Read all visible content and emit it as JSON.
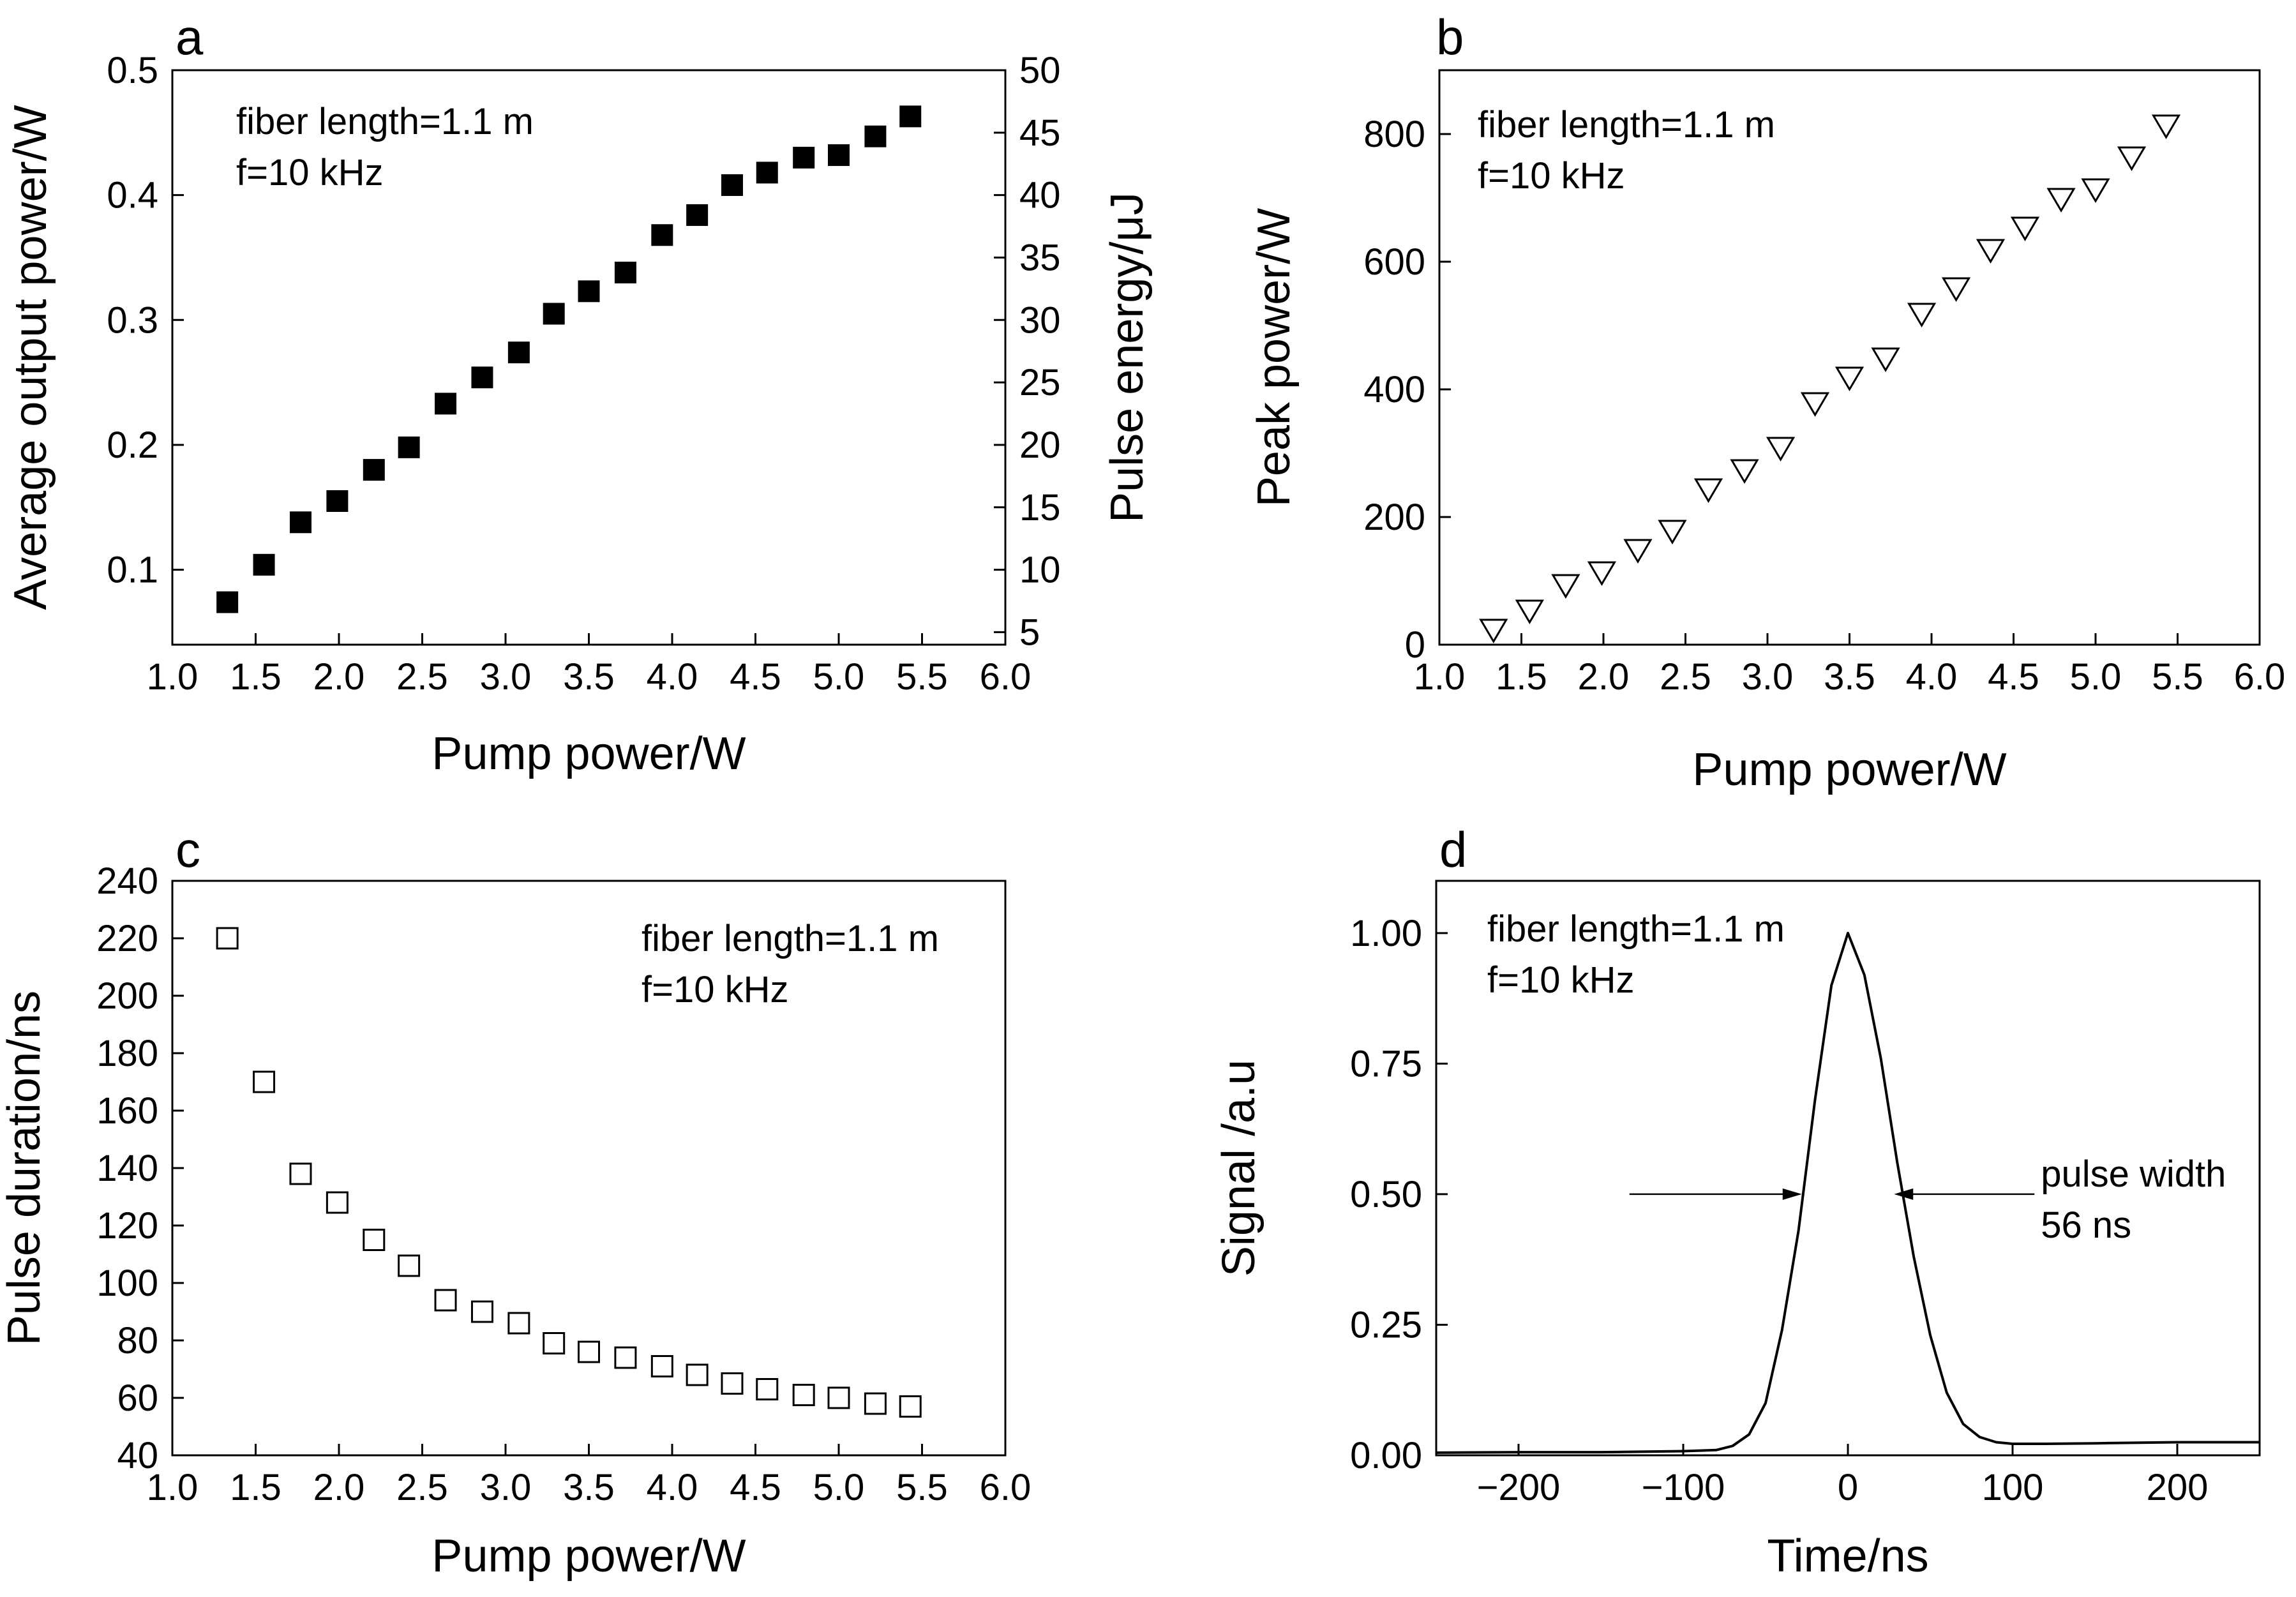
{
  "figure": {
    "panels_count": 4
  },
  "chart_data": [
    {
      "panel": "a",
      "type": "scatter",
      "xlabel": "Pump power/W",
      "ylabel": "Average output power/W",
      "y2label": "Pulse energy/μJ",
      "xlim": [
        1.0,
        6.0
      ],
      "ylim": [
        0.04,
        0.5
      ],
      "y2lim": [
        4,
        50
      ],
      "xticks": [
        "1.0",
        "1.5",
        "2.0",
        "2.5",
        "3.0",
        "3.5",
        "4.0",
        "4.5",
        "5.0",
        "5.5",
        "6.0"
      ],
      "yticks": [
        "0.1",
        "0.2",
        "0.3",
        "0.4",
        "0.5"
      ],
      "y2ticks": [
        "5",
        "10",
        "15",
        "20",
        "25",
        "30",
        "35",
        "40",
        "45",
        "50"
      ],
      "annotations": [
        "fiber length=1.1 m",
        "f=10 kHz"
      ],
      "series": [
        {
          "name": "average output power",
          "marker": "filled-square",
          "x": [
            1.33,
            1.55,
            1.77,
            1.99,
            2.21,
            2.42,
            2.64,
            2.86,
            3.08,
            3.29,
            3.5,
            3.72,
            3.94,
            4.15,
            4.36,
            4.57,
            4.79,
            5.0,
            5.22,
            5.43
          ],
          "y": [
            0.074,
            0.104,
            0.138,
            0.155,
            0.18,
            0.198,
            0.233,
            0.254,
            0.274,
            0.305,
            0.323,
            0.338,
            0.368,
            0.384,
            0.408,
            0.418,
            0.43,
            0.432,
            0.447,
            0.463
          ]
        }
      ]
    },
    {
      "panel": "b",
      "type": "scatter",
      "xlabel": "Pump power/W",
      "ylabel": "Peak power/W",
      "xlim": [
        1.0,
        6.0
      ],
      "ylim": [
        0,
        900
      ],
      "xticks": [
        "1.0",
        "1.5",
        "2.0",
        "2.5",
        "3.0",
        "3.5",
        "4.0",
        "4.5",
        "5.0",
        "5.5",
        "6.0"
      ],
      "yticks": [
        "0",
        "200",
        "400",
        "600",
        "800"
      ],
      "annotations": [
        "fiber length=1.1 m",
        "f=10 kHz"
      ],
      "series": [
        {
          "name": "peak power",
          "marker": "open-triangle-down",
          "x": [
            1.33,
            1.55,
            1.77,
            1.99,
            2.21,
            2.42,
            2.64,
            2.86,
            3.08,
            3.29,
            3.5,
            3.72,
            3.94,
            4.15,
            4.36,
            4.57,
            4.79,
            5.0,
            5.22,
            5.43
          ],
          "y": [
            25,
            55,
            95,
            115,
            150,
            180,
            245,
            275,
            310,
            380,
            420,
            450,
            520,
            560,
            620,
            655,
            700,
            715,
            765,
            815
          ]
        }
      ]
    },
    {
      "panel": "c",
      "type": "scatter",
      "xlabel": "Pump power/W",
      "ylabel": "Pulse duration/ns",
      "xlim": [
        1.0,
        6.0
      ],
      "ylim": [
        40,
        240
      ],
      "xticks": [
        "1.0",
        "1.5",
        "2.0",
        "2.5",
        "3.0",
        "3.5",
        "4.0",
        "4.5",
        "5.0",
        "5.5",
        "6.0"
      ],
      "yticks": [
        "40",
        "60",
        "80",
        "100",
        "120",
        "140",
        "160",
        "180",
        "200",
        "220",
        "240"
      ],
      "annotations": [
        "fiber length=1.1 m",
        "f=10 kHz"
      ],
      "series": [
        {
          "name": "pulse duration",
          "marker": "open-square",
          "x": [
            1.33,
            1.55,
            1.77,
            1.99,
            2.21,
            2.42,
            2.64,
            2.86,
            3.08,
            3.29,
            3.5,
            3.72,
            3.94,
            4.15,
            4.36,
            4.57,
            4.79,
            5.0,
            5.22,
            5.43
          ],
          "y": [
            220,
            170,
            138,
            128,
            115,
            106,
            94,
            90,
            86,
            79,
            76,
            74,
            71,
            68,
            65,
            63,
            61,
            60,
            58,
            57
          ]
        }
      ]
    },
    {
      "panel": "d",
      "type": "line",
      "xlabel": "Time/ns",
      "ylabel": "Signal /a.u",
      "xlim": [
        -250,
        250
      ],
      "ylim": [
        0,
        1.1
      ],
      "xticks": [
        "-200",
        "-100",
        "0",
        "100",
        "200"
      ],
      "yticks": [
        "0.00",
        "0.25",
        "0.50",
        "0.75",
        "1.00"
      ],
      "annotations": [
        "fiber length=1.1 m",
        "f=10 kHz",
        "pulse width",
        "56 ns"
      ],
      "series": [
        {
          "name": "pulse waveform",
          "x": [
            -250,
            -200,
            -150,
            -100,
            -80,
            -70,
            -60,
            -50,
            -40,
            -30,
            -20,
            -10,
            0,
            10,
            20,
            30,
            40,
            50,
            60,
            70,
            80,
            90,
            100,
            120,
            150,
            200,
            250
          ],
          "y": [
            0.005,
            0.006,
            0.006,
            0.008,
            0.01,
            0.018,
            0.04,
            0.1,
            0.24,
            0.43,
            0.68,
            0.9,
            1.0,
            0.92,
            0.76,
            0.56,
            0.38,
            0.23,
            0.12,
            0.06,
            0.035,
            0.025,
            0.022,
            0.022,
            0.023,
            0.025,
            0.025
          ]
        }
      ],
      "fwhm_arrow_level": 0.5,
      "fwhm_arrow_x": [
        -28,
        28
      ]
    }
  ]
}
